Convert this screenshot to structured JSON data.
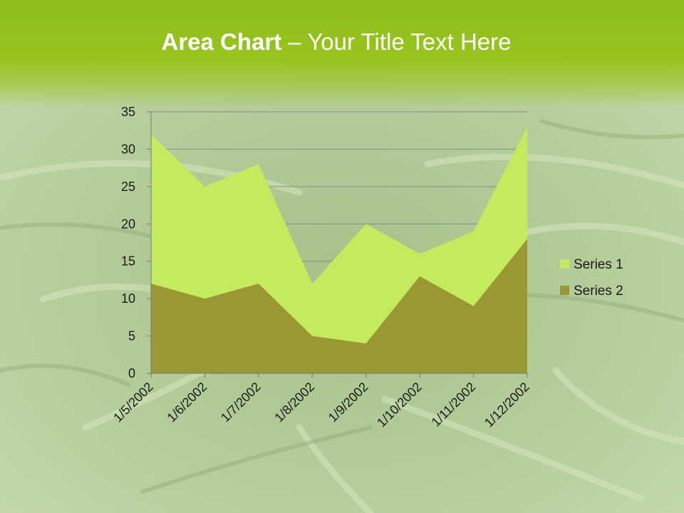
{
  "slide": {
    "title_bold": "Area Chart",
    "title_rest": " – Your Title Text Here"
  },
  "colors": {
    "series1": "#c4eb5e",
    "series2": "#9a9834",
    "title_bar": "#97c41c",
    "axis": "#7a7a7a"
  },
  "chart_data": {
    "type": "area",
    "title": "",
    "xlabel": "",
    "ylabel": "",
    "categories": [
      "1/5/2002",
      "1/6/2002",
      "1/7/2002",
      "1/8/2002",
      "1/9/2002",
      "1/10/2002",
      "1/11/2002",
      "1/12/2002"
    ],
    "series": [
      {
        "name": "Series 1",
        "values": [
          32,
          25,
          28,
          12,
          20,
          16,
          19,
          33
        ]
      },
      {
        "name": "Series 2",
        "values": [
          12,
          10,
          12,
          5,
          4,
          13,
          9,
          18
        ]
      }
    ],
    "stacked": false,
    "ylim": [
      0,
      35
    ],
    "yticks": [
      0,
      5,
      10,
      15,
      20,
      25,
      30,
      35
    ],
    "grid": true,
    "legend": "right"
  }
}
